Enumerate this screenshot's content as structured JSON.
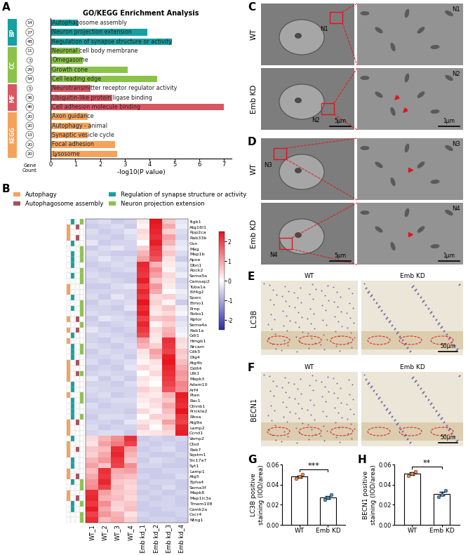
{
  "panel_labels": [
    "A",
    "B",
    "C",
    "D",
    "E",
    "F",
    "G",
    "H"
  ],
  "chart_data": [
    {
      "type": "bar",
      "orientation": "horizontal",
      "title": "GO/KEGG Enrichment Analysis",
      "x_label": "-log10(P value)",
      "count_label": "Gene\nCount",
      "xlim": [
        0,
        7.3
      ],
      "xticks": [
        0,
        1,
        2,
        3,
        4,
        5,
        6,
        7
      ],
      "tick_labels": "x",
      "groups": [
        {
          "name": "BP",
          "color": "#16a0a0",
          "terms": [
            "Autophagosome assembly",
            "Neuron projection extension",
            "Regulation of synapse structure or activity"
          ],
          "gene_counts": [
            14,
            27,
            48
          ],
          "values": [
            1.1,
            3.9,
            4.9
          ]
        },
        {
          "name": "CC",
          "color": "#8bc34a",
          "terms": [
            "Neuronal cell body membrane",
            "Omegasome",
            "Growth cone",
            "Cell leading edge"
          ],
          "gene_counts": [
            11,
            3,
            29,
            54
          ],
          "values": [
            1.2,
            1.3,
            3.1,
            4.3
          ]
        },
        {
          "name": "MF",
          "color": "#d95763",
          "terms": [
            "Neurotransmitter receptor regulator activity",
            "Ubiquitin-like protein ligase binding",
            "Cell adhesion molecule binding"
          ],
          "gene_counts": [
            5,
            36,
            46
          ],
          "values": [
            1.6,
            2.5,
            7.0
          ]
        },
        {
          "name": "KEGG",
          "color": "#f5a35c",
          "terms": [
            "Axon guidance",
            "Autophagy - animal",
            "Synaptic vesicle cycle",
            "Focal adhesion",
            "Lysosome"
          ],
          "gene_counts": [
            20,
            20,
            13,
            20,
            20
          ],
          "values": [
            1.5,
            1.6,
            1.5,
            2.6,
            2.7
          ]
        }
      ]
    },
    {
      "type": "heatmap",
      "legend": "upper left",
      "annotation_terms": [
        {
          "name": "Autophagy",
          "color": "#f5a35c"
        },
        {
          "name": "Regulation of synapse structure or activity",
          "color": "#16a0a0"
        },
        {
          "name": "Autophagosome assembly",
          "color": "#a8505e"
        },
        {
          "name": "Neuron projection extension",
          "color": "#8bc34a"
        }
      ],
      "x": [
        "WT_1",
        "WT_2",
        "WT_3",
        "WT_4",
        "Emb kd_1",
        "Emb kd_2",
        "Emb kd_3",
        "Emb kd_4"
      ],
      "y": [
        "Itgb1",
        "Atg16l1",
        "Ppp2ca",
        "Rab33b",
        "Gsn",
        "Mag",
        "Map1b",
        "Apoe",
        "Dbn1",
        "Rock2",
        "Sema5a",
        "Camsap2",
        "Tuba1a",
        "Eif4g2",
        "Sparc",
        "Elmo1",
        "Prnp",
        "Robo1",
        "Rptor",
        "Sema4a",
        "Rab1a",
        "Gdi1",
        "Hmgb1",
        "Nrcam",
        "Cdk5",
        "Dlg4",
        "Atg4b",
        "Ddit4",
        "Ulk1",
        "Mapk3",
        "Adam10",
        "Arf4",
        "Pten",
        "Rac1",
        "Ctnnb1",
        "Prickle2",
        "Rhoa",
        "Atg9a",
        "Lamp2",
        "Ccnd1",
        "Vamp2",
        "Ctsd",
        "Rab7",
        "Sqstm1",
        "Slc17a7",
        "Syt1",
        "Lamp1",
        "Atg5",
        "Epha4",
        "Sema3f",
        "Mapk8",
        "Map1lc3a",
        "Tmem108",
        "Camk2a",
        "Cxcr4",
        "Ntng1"
      ],
      "gene_terms": [
        [
          1,
          3
        ],
        [
          0,
          2
        ],
        [
          0
        ],
        [
          0,
          2
        ],
        [
          1
        ],
        [
          3
        ],
        [
          1,
          3
        ],
        [
          1,
          3
        ],
        [
          1
        ],
        [
          3
        ],
        [
          1,
          3
        ],
        [
          3
        ],
        [
          0
        ],
        [
          0
        ],
        [
          1
        ],
        [
          3
        ],
        [
          1,
          3
        ],
        [
          3
        ],
        [
          0,
          2
        ],
        [
          3
        ],
        [
          0,
          2
        ],
        [
          1
        ],
        [
          0
        ],
        [
          1,
          3
        ],
        [
          1,
          3
        ],
        [
          1
        ],
        [
          0,
          2
        ],
        [
          0
        ],
        [
          0,
          2,
          3
        ],
        [
          0
        ],
        [
          1
        ],
        [
          1
        ],
        [
          0,
          3
        ],
        [
          1,
          3
        ],
        [
          1
        ],
        [
          1
        ],
        [
          1,
          3
        ],
        [
          0,
          2
        ],
        [
          0
        ],
        [
          0
        ],
        [
          1
        ],
        [
          0
        ],
        [
          0,
          2
        ],
        [
          0
        ],
        [
          1
        ],
        [
          1
        ],
        [
          0
        ],
        [
          0,
          2
        ],
        [
          1,
          3
        ],
        [
          3
        ],
        [
          0
        ],
        [
          0,
          2
        ],
        [
          1,
          3
        ],
        [
          1
        ],
        [
          3
        ],
        [
          3
        ]
      ],
      "cells": [
        [
          -0.5,
          -0.4,
          -0.6,
          -0.5,
          0.2,
          2.5,
          0.6,
          -0.3
        ],
        [
          -0.6,
          -0.5,
          -0.4,
          -0.6,
          0.1,
          2.4,
          0.9,
          -0.2
        ],
        [
          -0.4,
          -0.6,
          -0.5,
          -0.3,
          0.4,
          2.3,
          0.5,
          -0.4
        ],
        [
          -0.5,
          -0.5,
          -0.6,
          -0.4,
          0.3,
          2.2,
          1.0,
          -0.5
        ],
        [
          -0.3,
          -0.6,
          -0.5,
          -0.5,
          0.0,
          2.4,
          0.8,
          -0.3
        ],
        [
          -0.6,
          -0.4,
          -0.3,
          -0.5,
          0.5,
          2.1,
          0.4,
          -0.2
        ],
        [
          -0.4,
          -0.5,
          -0.6,
          -0.6,
          0.8,
          2.0,
          0.6,
          -0.4
        ],
        [
          -0.5,
          -0.3,
          -0.5,
          -0.4,
          1.0,
          1.8,
          0.3,
          -0.6
        ],
        [
          -0.6,
          -0.5,
          -0.4,
          -0.5,
          2.3,
          0.8,
          0.2,
          -0.3
        ],
        [
          -0.5,
          -0.6,
          -0.5,
          -0.4,
          2.2,
          1.2,
          0.1,
          -0.4
        ],
        [
          -0.4,
          -0.5,
          -0.6,
          -0.6,
          2.1,
          1.0,
          0.4,
          -0.2
        ],
        [
          -0.5,
          -0.4,
          -0.5,
          -0.6,
          2.4,
          0.6,
          0.3,
          -0.5
        ],
        [
          -0.6,
          -0.6,
          -0.4,
          -0.3,
          2.0,
          1.1,
          0.2,
          -0.4
        ],
        [
          -0.5,
          -0.5,
          -0.5,
          -0.5,
          2.3,
          0.9,
          0.0,
          -0.2
        ],
        [
          -0.4,
          -0.6,
          -0.3,
          -0.5,
          2.1,
          0.4,
          0.5,
          -0.3
        ],
        [
          -0.6,
          -0.4,
          -0.5,
          -0.4,
          2.5,
          0.5,
          0.1,
          -0.6
        ],
        [
          -0.5,
          -0.5,
          -0.6,
          -0.3,
          2.2,
          0.3,
          0.6,
          -0.2
        ],
        [
          -0.4,
          -0.5,
          -0.5,
          -0.6,
          2.4,
          0.2,
          0.4,
          -0.1
        ],
        [
          -0.6,
          -0.3,
          -0.4,
          -0.5,
          2.0,
          0.6,
          0.7,
          -0.4
        ],
        [
          -0.5,
          -0.6,
          -0.5,
          -0.4,
          2.3,
          0.1,
          0.5,
          -0.3
        ],
        [
          -0.3,
          -0.5,
          -0.6,
          -0.5,
          2.1,
          0.4,
          0.8,
          -0.2
        ],
        [
          -0.5,
          -0.4,
          -0.5,
          -0.6,
          1.9,
          0.3,
          0.9,
          -0.1
        ],
        [
          -0.5,
          -0.6,
          -0.4,
          -0.5,
          1.0,
          0.2,
          2.2,
          0.4
        ],
        [
          -0.4,
          -0.5,
          -0.6,
          -0.4,
          0.8,
          0.5,
          2.1,
          0.3
        ],
        [
          -0.6,
          -0.4,
          -0.5,
          -0.5,
          0.3,
          1.0,
          2.0,
          0.6
        ],
        [
          -0.5,
          -0.5,
          -0.4,
          -0.6,
          0.2,
          0.8,
          2.4,
          0.5
        ],
        [
          -0.4,
          -0.6,
          -0.5,
          -0.4,
          0.1,
          0.3,
          2.5,
          0.7
        ],
        [
          -0.6,
          -0.5,
          -0.6,
          -0.3,
          0.4,
          0.2,
          2.3,
          0.9
        ],
        [
          -0.5,
          -0.4,
          -0.5,
          -0.5,
          0.0,
          0.4,
          2.2,
          1.1
        ],
        [
          -0.3,
          -0.6,
          -0.4,
          -0.6,
          0.3,
          0.1,
          2.1,
          1.0
        ],
        [
          -0.5,
          -0.5,
          -0.6,
          -0.4,
          0.2,
          0.0,
          2.0,
          1.3
        ],
        [
          -0.4,
          -0.5,
          -0.5,
          -0.5,
          0.5,
          0.3,
          1.8,
          1.2
        ],
        [
          -0.5,
          -0.4,
          -0.6,
          -0.5,
          0.3,
          0.2,
          0.8,
          2.4
        ],
        [
          -0.6,
          -0.5,
          -0.4,
          -0.4,
          0.2,
          0.4,
          0.6,
          2.3
        ],
        [
          -0.4,
          -0.6,
          -0.5,
          -0.5,
          0.1,
          0.3,
          0.9,
          2.2
        ],
        [
          -0.5,
          -0.5,
          -0.5,
          -0.6,
          0.4,
          0.1,
          0.7,
          2.5
        ],
        [
          -0.6,
          -0.4,
          -0.4,
          -0.5,
          0.0,
          0.5,
          0.5,
          2.1
        ],
        [
          -0.5,
          -0.5,
          -0.6,
          -0.3,
          0.3,
          0.2,
          1.0,
          2.0
        ],
        [
          -0.4,
          -0.6,
          -0.5,
          -0.5,
          0.5,
          0.0,
          0.6,
          2.3
        ],
        [
          -0.5,
          -0.4,
          -0.4,
          -0.6,
          0.2,
          0.3,
          0.4,
          2.4
        ],
        [
          0.4,
          0.8,
          1.2,
          2.2,
          -0.6,
          -0.5,
          -0.6,
          -0.5
        ],
        [
          0.3,
          1.0,
          1.4,
          2.0,
          -0.5,
          -0.6,
          -0.5,
          -0.6
        ],
        [
          0.6,
          0.7,
          2.2,
          1.0,
          -0.6,
          -0.5,
          -0.4,
          -0.6
        ],
        [
          0.5,
          0.9,
          2.3,
          0.8,
          -0.5,
          -0.6,
          -0.6,
          -0.5
        ],
        [
          0.8,
          1.1,
          2.1,
          0.6,
          -0.6,
          -0.4,
          -0.5,
          -0.6
        ],
        [
          1.0,
          0.6,
          2.0,
          1.2,
          -0.5,
          -0.5,
          -0.6,
          -0.6
        ],
        [
          0.7,
          2.2,
          0.9,
          1.0,
          -0.6,
          -0.6,
          -0.5,
          -0.5
        ],
        [
          0.9,
          2.1,
          0.8,
          0.7,
          -0.5,
          -0.6,
          -0.6,
          -0.4
        ],
        [
          1.1,
          2.3,
          0.6,
          0.5,
          -0.6,
          -0.5,
          -0.5,
          -0.6
        ],
        [
          1.2,
          2.0,
          0.7,
          0.4,
          -0.5,
          -0.6,
          -0.4,
          -0.6
        ],
        [
          2.2,
          1.0,
          0.6,
          0.5,
          -0.6,
          -0.5,
          -0.6,
          -0.5
        ],
        [
          2.3,
          0.8,
          0.7,
          0.4,
          -0.5,
          -0.6,
          -0.5,
          -0.6
        ],
        [
          2.1,
          1.2,
          0.5,
          0.6,
          -0.6,
          -0.5,
          -0.5,
          -0.6
        ],
        [
          2.4,
          0.9,
          0.4,
          0.7,
          -0.6,
          -0.6,
          -0.5,
          -0.5
        ],
        [
          2.0,
          1.1,
          0.8,
          0.3,
          -0.5,
          -0.6,
          -0.6,
          -0.5
        ],
        [
          2.2,
          0.7,
          0.9,
          0.5,
          -0.6,
          -0.5,
          -0.5,
          -0.6
        ]
      ],
      "colorbar": {
        "range": [
          -2.5,
          2.5
        ],
        "ticks": [
          -2,
          -1,
          0,
          1,
          2
        ]
      }
    },
    {
      "type": "bar",
      "categories": [
        "WT",
        "Emb KD"
      ],
      "values": [
        0.048,
        0.027
      ],
      "errors": [
        0.001,
        0.0015
      ],
      "points": [
        [
          0.046,
          0.048,
          0.05
        ],
        [
          0.025,
          0.027,
          0.03
        ]
      ],
      "colors": [
        "#f08a4b",
        "#4a90c2"
      ],
      "y_label": "LC3B positive\nstaining (IOD/area)",
      "ylim": [
        0,
        0.06
      ],
      "yticks": [
        {
          "value": 0,
          "label": "0.00"
        },
        {
          "value": 0.02,
          "label": "0.02"
        },
        {
          "value": 0.04,
          "label": "0.04"
        },
        {
          "value": 0.06,
          "label": "0.06"
        }
      ],
      "significance": "***"
    },
    {
      "type": "bar",
      "categories": [
        "WT",
        "Emb KD"
      ],
      "values": [
        0.051,
        0.031
      ],
      "errors": [
        0.0012,
        0.0017
      ],
      "points": [
        [
          0.049,
          0.051,
          0.053
        ],
        [
          0.028,
          0.03,
          0.034
        ]
      ],
      "colors": [
        "#f08a4b",
        "#4a90c2"
      ],
      "y_label": "BECN1 positive\nstaining (IOD/area)",
      "ylim": [
        0,
        0.06
      ],
      "yticks": [
        {
          "value": 0,
          "label": "0.00"
        },
        {
          "value": 0.02,
          "label": "0.02"
        },
        {
          "value": 0.04,
          "label": "0.04"
        },
        {
          "value": 0.06,
          "label": "0.06"
        }
      ],
      "significance": "**"
    }
  ],
  "images": {
    "C": {
      "rows": [
        "WT",
        "Emb KD"
      ],
      "nuclei": [
        "N1",
        "N2"
      ],
      "scale_bars": [
        "5μm",
        "1μm"
      ]
    },
    "D": {
      "rows": [
        "WT",
        "Emb KD"
      ],
      "nuclei": [
        "N3",
        "N4"
      ],
      "scale_bars": [
        "5μm",
        "1μm"
      ]
    },
    "E": {
      "marker": "LC3B",
      "columns": [
        "WT",
        "Emb KD"
      ],
      "scale_bar": "50μm"
    },
    "F": {
      "marker": "BECN1",
      "columns": [
        "WT",
        "Emb KD"
      ],
      "scale_bar": "50μm"
    }
  }
}
